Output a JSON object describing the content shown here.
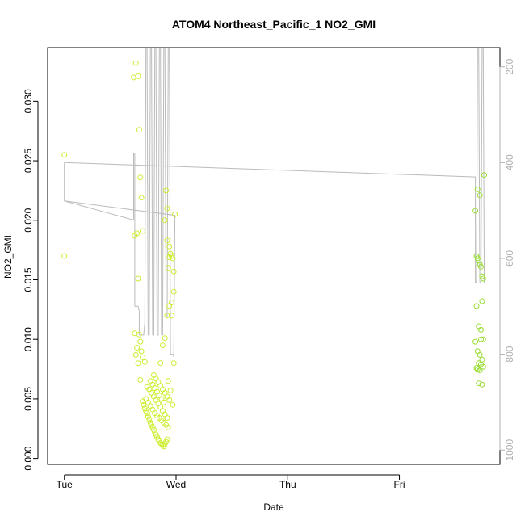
{
  "chart_data": {
    "type": "scatter",
    "title": "ATOM4 Northeast_Pacific_1 NO2_GMI",
    "xlabel": "Date",
    "ylabel": "NO2_GMI",
    "x_ticks": [
      {
        "label": "Tue",
        "value": 0
      },
      {
        "label": "Wed",
        "value": 1
      },
      {
        "label": "Thu",
        "value": 2
      },
      {
        "label": "Fri",
        "value": 3
      }
    ],
    "y_ticks": [
      {
        "label": "0.000",
        "value": 0.0
      },
      {
        "label": "0.005",
        "value": 0.005
      },
      {
        "label": "0.010",
        "value": 0.01
      },
      {
        "label": "0.015",
        "value": 0.015
      },
      {
        "label": "0.020",
        "value": 0.02
      },
      {
        "label": "0.025",
        "value": 0.025
      },
      {
        "label": "0.030",
        "value": 0.03
      }
    ],
    "y2_ticks": [
      {
        "label": "200",
        "value": 200
      },
      {
        "label": "400",
        "value": 400
      },
      {
        "label": "600",
        "value": 600
      },
      {
        "label": "800",
        "value": 800
      },
      {
        "label": "1000",
        "value": 1000
      }
    ],
    "xlim": [
      -0.15,
      3.9
    ],
    "ylim": [
      -0.0005,
      0.0345
    ],
    "y2lim": [
      1030,
      160
    ],
    "y2_reversed": true,
    "grid": false,
    "colors": {
      "points_wed": "#ccee33",
      "points_fri": "#99dd33",
      "pressure_line": "#bbbbbb",
      "axis": "#000000",
      "right_axis": "#b0b0b0"
    },
    "series": [
      {
        "role": "points",
        "color": "#ccee33",
        "x": [
          0.0,
          0.0,
          0.62,
          0.64,
          0.66,
          0.67,
          0.68,
          0.69,
          0.7,
          0.63,
          0.65,
          0.66,
          0.67,
          0.68,
          0.69,
          0.7,
          0.72,
          0.63,
          0.64,
          0.65,
          0.66,
          0.68,
          0.7,
          0.71,
          0.72,
          0.73,
          0.74,
          0.75,
          0.76,
          0.77,
          0.78,
          0.79,
          0.8,
          0.81,
          0.82,
          0.83,
          0.84,
          0.85,
          0.86,
          0.87,
          0.88,
          0.89,
          0.9,
          0.91,
          0.92,
          0.73,
          0.75,
          0.77,
          0.79,
          0.81,
          0.83,
          0.85,
          0.87,
          0.89,
          0.91,
          0.93,
          0.74,
          0.76,
          0.78,
          0.8,
          0.82,
          0.84,
          0.86,
          0.88,
          0.9,
          0.92,
          0.77,
          0.79,
          0.81,
          0.83,
          0.85,
          0.87,
          0.89,
          0.8,
          0.82,
          0.84,
          0.86,
          0.88,
          0.9,
          0.92,
          0.94,
          0.86,
          0.88,
          0.9,
          0.92,
          0.94,
          0.96,
          0.98,
          0.91,
          0.92,
          0.93,
          0.94,
          0.95,
          0.96,
          0.97,
          0.98,
          0.99,
          0.9,
          0.92,
          0.94,
          0.96,
          0.98,
          0.93,
          0.95,
          0.97
        ],
        "y": [
          0.0255,
          0.017,
          0.032,
          0.0332,
          0.0321,
          0.0276,
          0.0236,
          0.0219,
          0.0191,
          0.0187,
          0.0189,
          0.0151,
          0.0104,
          0.0098,
          0.009,
          0.0085,
          0.0081,
          0.0105,
          0.0087,
          0.0093,
          0.008,
          0.0066,
          0.0048,
          0.0045,
          0.0042,
          0.004,
          0.0038,
          0.0035,
          0.0033,
          0.003,
          0.0028,
          0.0026,
          0.0024,
          0.0022,
          0.002,
          0.0018,
          0.0016,
          0.0015,
          0.0013,
          0.0012,
          0.0011,
          0.001,
          0.0012,
          0.0014,
          0.0016,
          0.005,
          0.0047,
          0.0044,
          0.0041,
          0.0038,
          0.0036,
          0.0034,
          0.0032,
          0.003,
          0.0028,
          0.0026,
          0.006,
          0.0058,
          0.0055,
          0.0052,
          0.0049,
          0.0046,
          0.0043,
          0.004,
          0.0037,
          0.0034,
          0.0065,
          0.0062,
          0.0059,
          0.0056,
          0.0053,
          0.005,
          0.0047,
          0.007,
          0.0067,
          0.0064,
          0.0061,
          0.0058,
          0.0055,
          0.0052,
          0.0049,
          0.008,
          0.0095,
          0.0101,
          0.012,
          0.0128,
          0.0131,
          0.014,
          0.0225,
          0.0183,
          0.016,
          0.0169,
          0.0172,
          0.017,
          0.0168,
          0.0157,
          0.0205,
          0.02,
          0.021,
          0.0178,
          0.012,
          0.008,
          0.0065,
          0.0057,
          0.0045
        ]
      },
      {
        "role": "points",
        "color": "#99dd33",
        "x": [
          3.68,
          3.69,
          3.7,
          3.71,
          3.72,
          3.73,
          3.74,
          3.75,
          3.76,
          3.7,
          3.72,
          3.74,
          3.69,
          3.71,
          3.73,
          3.75,
          3.68,
          3.7,
          3.72,
          3.74,
          3.71,
          3.73,
          3.75,
          3.69,
          3.7,
          3.72,
          3.74,
          3.71,
          3.73
        ],
        "y": [
          0.0208,
          0.017,
          0.0168,
          0.0166,
          0.0163,
          0.0161,
          0.0153,
          0.0151,
          0.0238,
          0.0226,
          0.0221,
          0.0132,
          0.0128,
          0.0111,
          0.0108,
          0.01,
          0.0098,
          0.009,
          0.0087,
          0.0083,
          0.008,
          0.0079,
          0.0077,
          0.0076,
          0.0075,
          0.0074,
          0.0062,
          0.0063,
          0.01
        ]
      },
      {
        "role": "pressure",
        "color": "#bbbbbb",
        "x": [
          0.0,
          0.0,
          0.0,
          0.62,
          0.62,
          0.63,
          0.63,
          0.66,
          0.67,
          0.67,
          0.69,
          0.7,
          0.71,
          0.72,
          0.73,
          0.74,
          0.75,
          0.76,
          0.77,
          0.78,
          0.79,
          0.8,
          0.81,
          0.82,
          0.83,
          0.84,
          0.85,
          0.86,
          0.87,
          0.88,
          0.89,
          0.9,
          0.91,
          0.92,
          0.93,
          0.94,
          0.95,
          0.96,
          0.97,
          0.98,
          0.99,
          0.99,
          0.0
        ],
        "y": [
          400,
          400,
          480,
          520,
          380,
          380,
          700,
          700,
          710,
          760,
          760,
          760,
          760,
          735,
          160,
          160,
          760,
          760,
          160,
          160,
          760,
          760,
          160,
          160,
          760,
          760,
          160,
          160,
          760,
          760,
          160,
          160,
          720,
          720,
          160,
          160,
          800,
          800,
          800,
          805,
          510,
          510,
          480
        ]
      },
      {
        "role": "pressure",
        "color": "#bbbbbb",
        "x": [
          0.0,
          3.68,
          3.68,
          3.69,
          3.7,
          3.71,
          3.72,
          3.73,
          3.74,
          3.75,
          3.76
        ],
        "y": [
          400,
          430,
          650,
          650,
          160,
          160,
          650,
          650,
          160,
          160,
          650
        ]
      }
    ]
  }
}
